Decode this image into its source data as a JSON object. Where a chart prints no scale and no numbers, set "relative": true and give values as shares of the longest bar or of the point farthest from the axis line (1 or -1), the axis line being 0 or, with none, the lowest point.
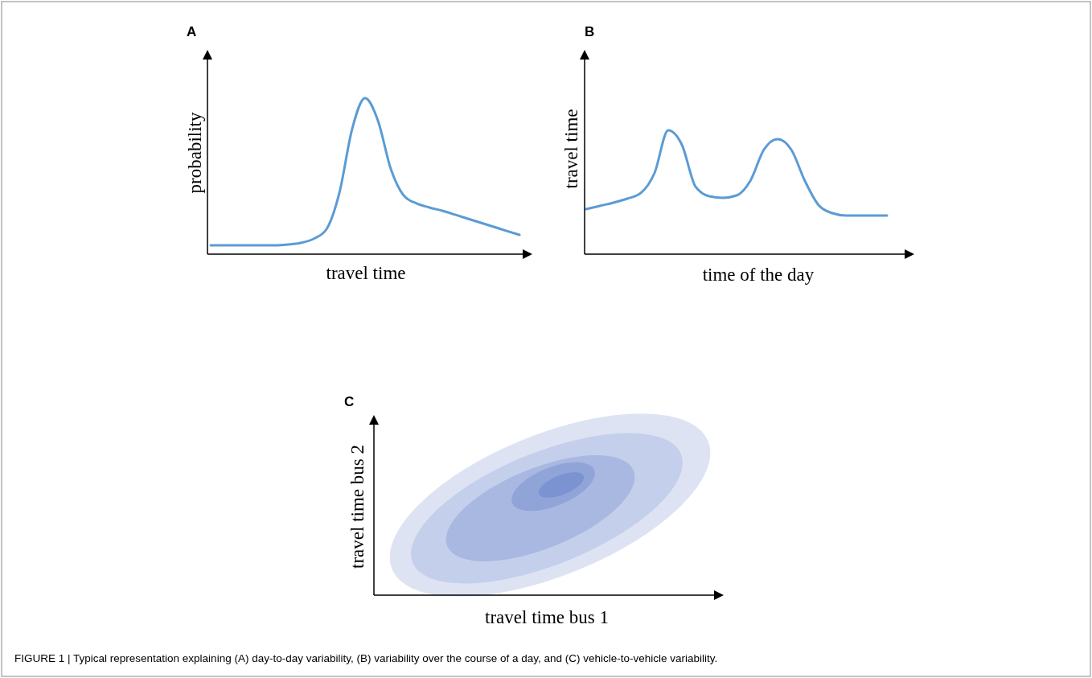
{
  "chart_data": [
    {
      "type": "line",
      "title": "A",
      "xlabel": "travel time",
      "ylabel": "probability",
      "relative": true,
      "categories": [
        null,
        null,
        null,
        null,
        null,
        null,
        null,
        null,
        null,
        null,
        null,
        null,
        null,
        null,
        null,
        null,
        null,
        null,
        null,
        null,
        null,
        null,
        null,
        null,
        null
      ],
      "series": [
        {
          "color": "#5b9bd5",
          "values": [
            0.057,
            0.057,
            0.057,
            0.057,
            0.057,
            0.057,
            0.062,
            0.072,
            0.098,
            0.16,
            0.392,
            0.804,
            1,
            0.856,
            0.546,
            0.376,
            0.325,
            0.299,
            0.278,
            0.253,
            0.227,
            0.201,
            0.175,
            0.149,
            0.124
          ]
        }
      ]
    },
    {
      "type": "line",
      "title": "B",
      "xlabel": "time of the day",
      "ylabel": "travel time",
      "relative": true,
      "categories": [
        null,
        null,
        null,
        null,
        null,
        null,
        null,
        null,
        null,
        null,
        null,
        null,
        null,
        null,
        null,
        null,
        null,
        null,
        null,
        null,
        null,
        null,
        null
      ],
      "series": [
        {
          "color": "#5b9bd5",
          "values": [
            0.364,
            0.39,
            0.416,
            0.448,
            0.494,
            0.656,
            1,
            0.883,
            0.545,
            0.468,
            0.455,
            0.474,
            0.591,
            0.844,
            0.929,
            0.844,
            0.591,
            0.396,
            0.331,
            0.312,
            0.312,
            0.312,
            0.312
          ]
        }
      ]
    },
    {
      "type": "other",
      "title": "C",
      "xlabel": "travel time bus 1",
      "ylabel": "travel time bus 2",
      "annotations": [
        "FIGURE 1 | Typical representation explaining (A) day-to-day variability, (B) variability over the course of a day, and (C) vehicle-to-vehicle variability."
      ]
    }
  ]
}
